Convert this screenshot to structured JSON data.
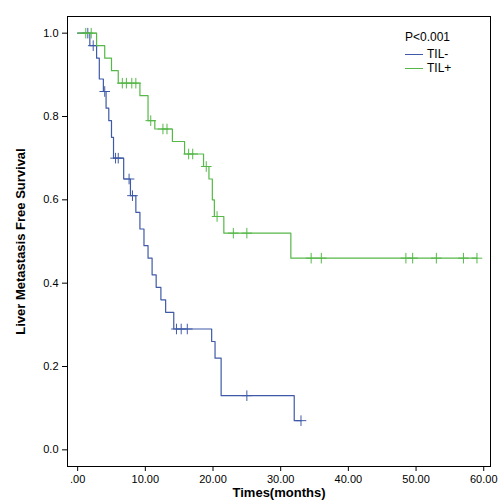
{
  "chart_data": {
    "type": "line",
    "line_style": "step",
    "marker": "plus",
    "xlabel": "Times(months)",
    "ylabel": "Liver Metastasis Free Survival",
    "annotation": "P<0.001",
    "legend": "top-right",
    "grid": false,
    "xlim": [
      -1.5,
      61
    ],
    "ylim": [
      -0.04,
      1.04
    ],
    "xticks": [
      {
        "value": 0,
        "label": ".00"
      },
      {
        "value": 10,
        "label": "10.00"
      },
      {
        "value": 20,
        "label": "20.00"
      },
      {
        "value": 30,
        "label": "30.00"
      },
      {
        "value": 40,
        "label": "40.00"
      },
      {
        "value": 50,
        "label": "50.00"
      },
      {
        "value": 60,
        "label": "60.00"
      }
    ],
    "yticks": [
      {
        "value": 0,
        "label": "0.0"
      },
      {
        "value": 0.2,
        "label": "0.2"
      },
      {
        "value": 0.4,
        "label": "0.4"
      },
      {
        "value": 0.6,
        "label": "0.6"
      },
      {
        "value": 0.8,
        "label": "0.8"
      },
      {
        "value": 1,
        "label": "1.0"
      }
    ],
    "series": [
      {
        "name": "TIL-",
        "color": "#3f5aa8",
        "x": [
          0,
          1.8,
          2.8,
          3.2,
          3.8,
          4.2,
          4.6,
          5.0,
          5.3,
          6.8,
          7.8,
          8.6,
          9.2,
          9.8,
          10.4,
          11.0,
          11.6,
          12.3,
          13.0,
          14.2,
          19.8,
          20.3,
          21.2,
          32.0,
          33.0
        ],
        "values": [
          1.0,
          0.97,
          0.94,
          0.89,
          0.86,
          0.82,
          0.79,
          0.75,
          0.7,
          0.65,
          0.61,
          0.57,
          0.53,
          0.49,
          0.46,
          0.42,
          0.39,
          0.36,
          0.33,
          0.29,
          0.26,
          0.22,
          0.13,
          0.07,
          0.07
        ],
        "censored_x": [
          1.5,
          2.3,
          4.0,
          5.6,
          6.0,
          7.6,
          8.1,
          14.6,
          15.3,
          16.2,
          25.0,
          33.0
        ],
        "censored_values": [
          1.0,
          0.97,
          0.86,
          0.7,
          0.7,
          0.65,
          0.61,
          0.29,
          0.29,
          0.29,
          0.13,
          0.07
        ]
      },
      {
        "name": "TIL+",
        "color": "#55b848",
        "x": [
          0,
          2.8,
          4.0,
          5.0,
          6.0,
          9.2,
          10.4,
          11.4,
          14.0,
          15.8,
          18.6,
          19.4,
          19.9,
          20.2,
          21.6,
          31.5,
          59.0
        ],
        "values": [
          1.0,
          0.97,
          0.94,
          0.91,
          0.88,
          0.85,
          0.79,
          0.77,
          0.74,
          0.71,
          0.68,
          0.65,
          0.6,
          0.56,
          0.52,
          0.46,
          0.46
        ],
        "censored_x": [
          1.2,
          2.0,
          6.6,
          7.2,
          8.0,
          8.6,
          10.8,
          12.6,
          13.2,
          16.4,
          17.0,
          19.0,
          20.6,
          23.0,
          25.0,
          34.5,
          36.0,
          48.5,
          49.5,
          53.0,
          57.0,
          59.0
        ],
        "censored_values": [
          1.0,
          1.0,
          0.88,
          0.88,
          0.88,
          0.88,
          0.79,
          0.77,
          0.77,
          0.71,
          0.71,
          0.68,
          0.56,
          0.52,
          0.52,
          0.46,
          0.46,
          0.46,
          0.46,
          0.46,
          0.46,
          0.46
        ]
      }
    ]
  }
}
